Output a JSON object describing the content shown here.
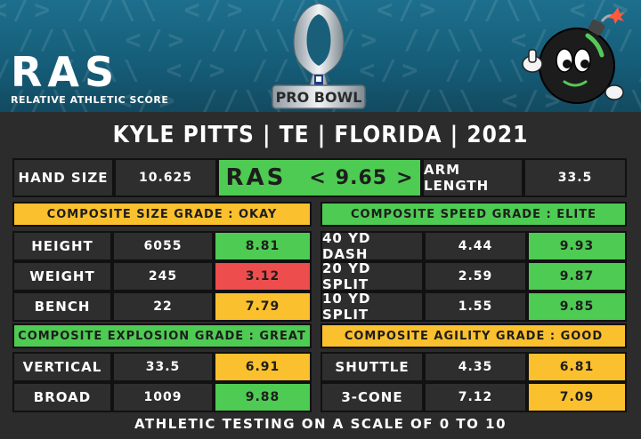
{
  "logo": {
    "text": "RAS",
    "subtitle": "RELATIVE ATHLETIC SCORE"
  },
  "pro_bowl": {
    "text": "PRO BOWL"
  },
  "title": "KYLE PITTS | TE | FLORIDA | 2021",
  "top_row": {
    "hand_size_label": "HAND SIZE",
    "hand_size_value": "10.625",
    "ras_label": "RAS",
    "ras_left": "<",
    "ras_score": "9.65",
    "ras_right": ">",
    "arm_length_label": "ARM LENGTH",
    "arm_length_value": "33.5"
  },
  "size": {
    "header": "COMPOSITE SIZE GRADE : OKAY",
    "rows": [
      {
        "label": "HEIGHT",
        "value": "6055",
        "score": "8.81"
      },
      {
        "label": "WEIGHT",
        "value": "245",
        "score": "3.12"
      },
      {
        "label": "BENCH",
        "value": "22",
        "score": "7.79"
      }
    ]
  },
  "speed": {
    "header": "COMPOSITE SPEED GRADE : ELITE",
    "rows": [
      {
        "label": "40 YD DASH",
        "value": "4.44",
        "score": "9.93"
      },
      {
        "label": "20 YD SPLIT",
        "value": "2.59",
        "score": "9.87"
      },
      {
        "label": "10 YD SPLIT",
        "value": "1.55",
        "score": "9.85"
      }
    ]
  },
  "explosion": {
    "header": "COMPOSITE EXPLOSION GRADE : GREAT",
    "rows": [
      {
        "label": "VERTICAL",
        "value": "33.5",
        "score": "6.91"
      },
      {
        "label": "BROAD",
        "value": "1009",
        "score": "9.88"
      }
    ]
  },
  "agility": {
    "header": "COMPOSITE AGILITY GRADE : GOOD",
    "rows": [
      {
        "label": "SHUTTLE",
        "value": "4.35",
        "score": "6.81"
      },
      {
        "label": "3-CONE",
        "value": "7.12",
        "score": "7.09"
      }
    ]
  },
  "footer": "ATHLETIC TESTING ON A SCALE OF 0 TO 10",
  "colors": {
    "green": "#4ecb52",
    "yellow": "#fbc02d",
    "red": "#ee4d4d",
    "banner": "#1d6f8d",
    "panel": "#2e2e2e"
  },
  "icons": {
    "trophy": "pro-bowl-trophy-icon",
    "mascot": "bomb-mascot-icon"
  }
}
